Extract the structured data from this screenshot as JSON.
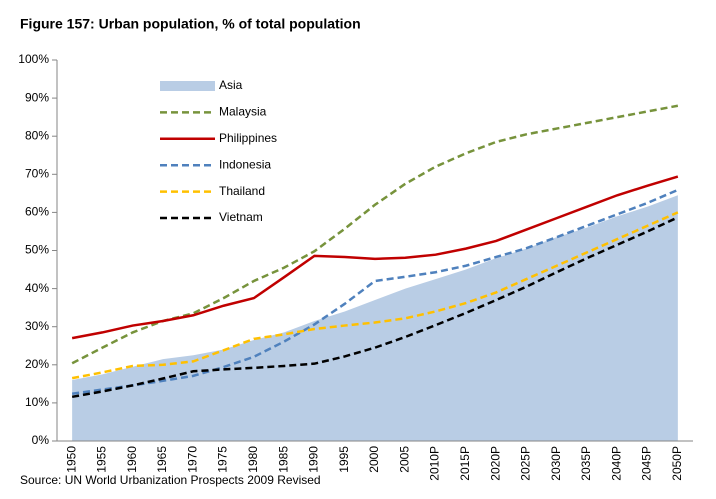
{
  "chart_data": {
    "type": "line",
    "title": "Figure 157: Urban population, % of total population",
    "source": "Source: UN World Urbanization Prospects 2009 Revised",
    "categories": [
      "1950",
      "1955",
      "1960",
      "1965",
      "1970",
      "1975",
      "1980",
      "1985",
      "1990",
      "1995",
      "2000",
      "2005",
      "2010P",
      "2015P",
      "2020P",
      "2025P",
      "2030P",
      "2035P",
      "2040P",
      "2045P",
      "2050P"
    ],
    "ylim": [
      0,
      100
    ],
    "yticks": [
      {
        "value": 0,
        "label": "0%"
      },
      {
        "value": 10,
        "label": "10%"
      },
      {
        "value": 20,
        "label": "20%"
      },
      {
        "value": 30,
        "label": "30%"
      },
      {
        "value": 40,
        "label": "40%"
      },
      {
        "value": 50,
        "label": "50%"
      },
      {
        "value": 60,
        "label": "60%"
      },
      {
        "value": 70,
        "label": "70%"
      },
      {
        "value": 80,
        "label": "80%"
      },
      {
        "value": 90,
        "label": "90%"
      },
      {
        "value": 100,
        "label": "100%"
      }
    ],
    "legend": "upper left",
    "series": [
      {
        "name": "Asia",
        "color": "#b9cde5",
        "style": "area",
        "values": [
          16,
          17.5,
          19.5,
          21.5,
          22.5,
          24,
          26.5,
          28.5,
          31.5,
          34,
          37,
          40,
          42.5,
          45,
          48,
          50.5,
          53.5,
          56,
          59,
          61.5,
          64.5
        ]
      },
      {
        "name": "Malaysia",
        "color": "#77933c",
        "style": "dashed",
        "values": [
          20.4,
          24.5,
          28.5,
          31.5,
          33.5,
          37.5,
          42,
          45.5,
          49.8,
          55.7,
          62,
          67.5,
          72,
          75.5,
          78.5,
          80.5,
          82,
          83.5,
          85,
          86.5,
          88
        ]
      },
      {
        "name": "Philippines",
        "color": "#c00000",
        "style": "solid",
        "values": [
          27,
          28.5,
          30.3,
          31.5,
          33,
          35.5,
          37.5,
          43,
          48.6,
          48.3,
          47.8,
          48.1,
          48.9,
          50.5,
          52.5,
          55.5,
          58.5,
          61.5,
          64.5,
          67,
          69.4
        ]
      },
      {
        "name": "Indonesia",
        "color": "#4f81bd",
        "style": "dashed",
        "values": [
          12.4,
          13.5,
          14.6,
          15.8,
          17.1,
          19.4,
          22.1,
          26.1,
          30.6,
          36,
          42,
          43.1,
          44.3,
          46,
          48.3,
          50.6,
          53.5,
          56.5,
          59.5,
          62.5,
          65.9
        ]
      },
      {
        "name": "Thailand",
        "color": "#ffc000",
        "style": "dashed",
        "values": [
          16.5,
          18,
          19.7,
          20,
          20.9,
          23.8,
          26.8,
          28,
          29.4,
          30.3,
          31.1,
          32.2,
          34,
          36.2,
          39,
          42.5,
          46,
          49.5,
          53,
          56.5,
          60
        ]
      },
      {
        "name": "Vietnam",
        "color": "#000000",
        "style": "dashed",
        "values": [
          11.6,
          13,
          14.6,
          16.4,
          18.3,
          18.8,
          19.2,
          19.7,
          20.3,
          22.2,
          24.5,
          27.3,
          30.4,
          33.6,
          37,
          40.5,
          44.3,
          48,
          51.5,
          55,
          58.7
        ]
      }
    ]
  }
}
